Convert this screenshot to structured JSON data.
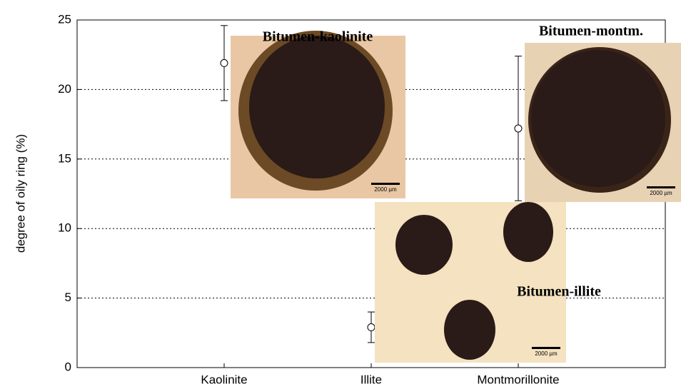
{
  "chart_data": {
    "type": "errorbar",
    "ylabel": "degree of oily ring (%)",
    "categories": [
      "Kaolinite",
      "Illite",
      "Montmorillonite"
    ],
    "values": [
      21.9,
      2.9,
      17.2
    ],
    "errors": [
      2.7,
      1.1,
      5.2
    ],
    "color": "#000000",
    "ylim": [
      0,
      25
    ],
    "yticks": [
      0,
      5,
      10,
      15,
      20,
      25
    ],
    "grid": true,
    "insets": [
      {
        "label": "Bitumen-kaolinite",
        "scale": "2000 µm"
      },
      {
        "label": "Bitumen-montm.",
        "scale": "2000 µm"
      },
      {
        "label": "Bitumen-illite",
        "scale": "2000 µm"
      }
    ]
  }
}
